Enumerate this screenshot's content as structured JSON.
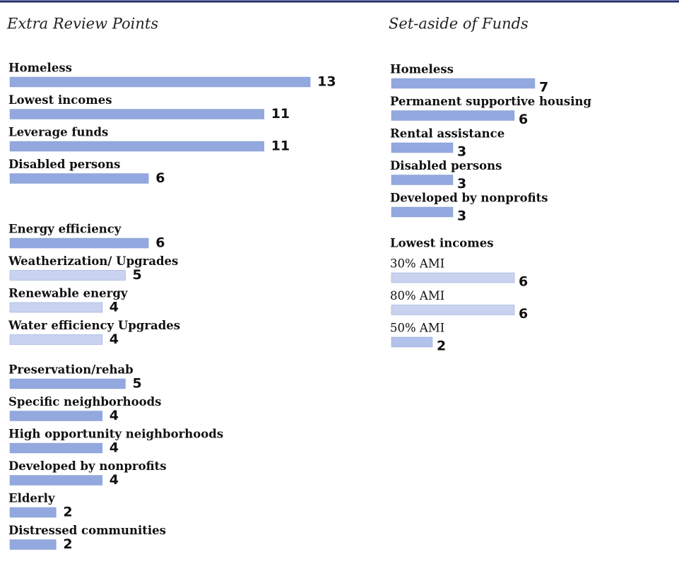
{
  "chart_data": [
    {
      "type": "bar",
      "title": "Extra Review Points",
      "groups": [
        {
          "categories": [
            "Homeless",
            "Lowest incomes",
            "Leverage funds",
            "Disabled persons"
          ],
          "values": [
            13,
            11,
            11,
            6
          ],
          "colors": [
            "#93a8de",
            "#93a8de",
            "#93a8de",
            "#93a8de"
          ]
        },
        {
          "categories": [
            "Energy efficiency",
            "Weatherization/ Upgrades",
            "Renewable energy",
            "Water efficiency Upgrades"
          ],
          "values": [
            6,
            5,
            4,
            4
          ],
          "colors": [
            "#93a8de",
            "#c9d3f0",
            "#c9d3f0",
            "#c9d3f0"
          ]
        },
        {
          "categories": [
            "Preservation/rehab",
            "Specific neighborhoods",
            "High opportunity neighborhoods",
            "Developed by nonprofits",
            "Elderly",
            "Distressed communities"
          ],
          "values": [
            5,
            4,
            4,
            4,
            2,
            2
          ],
          "colors": [
            "#93a8de",
            "#93a8de",
            "#93a8de",
            "#93a8de",
            "#93a8de",
            "#93a8de"
          ]
        }
      ]
    },
    {
      "type": "bar",
      "title": "Set-aside of Funds",
      "groups": [
        {
          "categories": [
            "Homeless",
            "Permanent supportive housing",
            "Rental assistance",
            "Disabled persons",
            "Developed by nonprofits"
          ],
          "values": [
            7,
            6,
            3,
            3,
            3
          ],
          "colors": [
            "#93a8de",
            "#93a8de",
            "#93a8de",
            "#93a8de",
            "#93a8de"
          ]
        },
        {
          "label": "Lowest incomes",
          "categories": [
            "30% AMI",
            "80% AMI",
            "50% AMI"
          ],
          "values": [
            6,
            6,
            2
          ],
          "colors": [
            "#c9d3f0",
            "#c9d3f0",
            "#b3c2ea"
          ]
        }
      ]
    }
  ]
}
